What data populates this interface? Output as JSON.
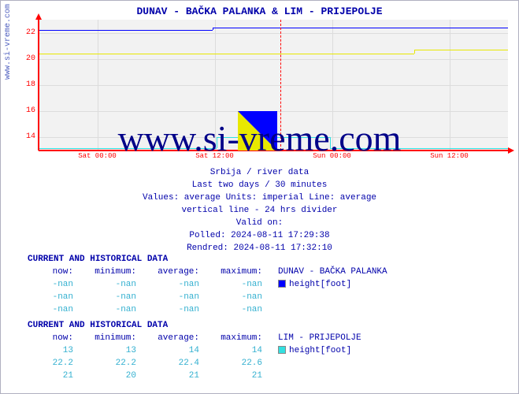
{
  "side_url": "www.si-vreme.com",
  "watermark": "www.si-vreme.com",
  "title": "DUNAV -  BAČKA PALANKA &  LIM -  PRIJEPOLJE",
  "chart": {
    "type": "line",
    "background_color": "#f2f2f2",
    "grid_color": "#dcdcdc",
    "axis_color": "#ff0000",
    "x_labels": [
      "Sat 00:00",
      "Sat 12:00",
      "Sun 00:00",
      "Sun 12:00"
    ],
    "x_positions_pct": [
      12.5,
      37.5,
      62.5,
      87.5
    ],
    "y_min": 13,
    "y_max": 23,
    "y_ticks": [
      14,
      16,
      18,
      20,
      22
    ],
    "vline_24h_pct": 51.5,
    "series": [
      {
        "name": "DUNAV",
        "color_primary": "#0000ff",
        "color_accent": "#e8e800",
        "segments": [
          {
            "y": 22.2,
            "x0_pct": 0,
            "x1_pct": 37
          },
          {
            "y": 22.4,
            "x0_pct": 37,
            "x1_pct": 100
          }
        ],
        "segments_accent": [
          {
            "y": 20.4,
            "x0_pct": 0,
            "x1_pct": 80
          },
          {
            "y": 20.7,
            "x0_pct": 80,
            "x1_pct": 100
          }
        ]
      },
      {
        "name": "LIM",
        "color_primary": "#33e0e0",
        "segments": [
          {
            "y": 13.2,
            "x0_pct": 0,
            "x1_pct": 38
          },
          {
            "y": 14.0,
            "x0_pct": 38,
            "x1_pct": 62
          },
          {
            "y": 13.2,
            "x0_pct": 62,
            "x1_pct": 100
          }
        ]
      }
    ]
  },
  "meta": {
    "line1": "Srbija / river data",
    "line2": "Last two days / 30 minutes",
    "line_values": "Values: average  Units: imperial  Line: average",
    "line_vline": "vertical line - 24 hrs  divider",
    "valid_on": "Valid on:",
    "polled": "Polled: 2024-08-11 17:29:38",
    "rendered": "Rendred: 2024-08-11 17:32:10"
  },
  "tables": [
    {
      "title": "CURRENT AND HISTORICAL DATA",
      "headers": {
        "now": "now:",
        "min": "minimum:",
        "avg": "average:",
        "max": "maximum:"
      },
      "station": "DUNAV -  BAČKA PALANKA",
      "swatch_color": "#0000ff",
      "metric": "height[foot]",
      "rows": [
        {
          "now": "-nan",
          "min": "-nan",
          "avg": "-nan",
          "max": "-nan"
        },
        {
          "now": "-nan",
          "min": "-nan",
          "avg": "-nan",
          "max": "-nan"
        },
        {
          "now": "-nan",
          "min": "-nan",
          "avg": "-nan",
          "max": "-nan"
        }
      ]
    },
    {
      "title": "CURRENT AND HISTORICAL DATA",
      "headers": {
        "now": "now:",
        "min": "minimum:",
        "avg": "average:",
        "max": "maximum:"
      },
      "station": "LIM -  PRIJEPOLJE",
      "swatch_color": "#33e0e0",
      "metric": "height[foot]",
      "rows": [
        {
          "now": "13",
          "min": "13",
          "avg": "14",
          "max": "14"
        },
        {
          "now": "22.2",
          "min": "22.2",
          "avg": "22.4",
          "max": "22.6"
        },
        {
          "now": "21",
          "min": "20",
          "avg": "21",
          "max": "21"
        }
      ]
    }
  ]
}
